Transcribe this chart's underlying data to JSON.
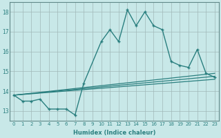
{
  "title": "",
  "xlabel": "Humidex (Indice chaleur)",
  "ylabel": "",
  "bg_color": "#c8e8e8",
  "grid_color": "#a0b8b8",
  "line_color": "#2a7f7f",
  "xlim": [
    -0.5,
    23.5
  ],
  "ylim": [
    12.5,
    18.5
  ],
  "xticks": [
    0,
    1,
    2,
    3,
    4,
    5,
    6,
    7,
    8,
    9,
    10,
    11,
    12,
    13,
    14,
    15,
    16,
    17,
    18,
    19,
    20,
    21,
    22,
    23
  ],
  "yticks": [
    13,
    14,
    15,
    16,
    17,
    18
  ],
  "main_x": [
    0,
    1,
    2,
    3,
    4,
    5,
    6,
    7,
    8,
    10,
    11,
    12,
    13,
    14,
    15,
    16,
    17,
    18,
    19,
    20,
    21,
    22,
    23
  ],
  "main_y": [
    13.8,
    13.5,
    13.5,
    13.6,
    13.1,
    13.1,
    13.1,
    12.8,
    14.4,
    16.5,
    17.1,
    16.5,
    18.1,
    17.3,
    18.0,
    17.3,
    17.1,
    15.5,
    15.3,
    15.2,
    16.1,
    14.9,
    14.7
  ],
  "line1_x": [
    0,
    23
  ],
  "line1_y": [
    13.8,
    14.6
  ],
  "line2_x": [
    0,
    23
  ],
  "line2_y": [
    13.8,
    14.75
  ],
  "line3_x": [
    0,
    23
  ],
  "line3_y": [
    13.8,
    14.9
  ]
}
